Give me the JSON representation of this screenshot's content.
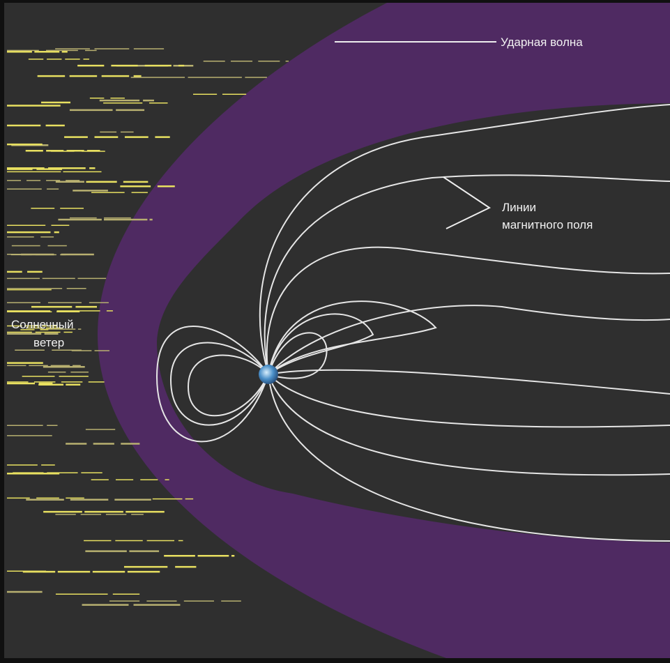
{
  "labels": {
    "shock_wave": "Ударная волна",
    "field_lines": [
      "Линии",
      "магнитного поля"
    ],
    "solar_wind": [
      "Солнечный",
      "ветер"
    ]
  }
}
